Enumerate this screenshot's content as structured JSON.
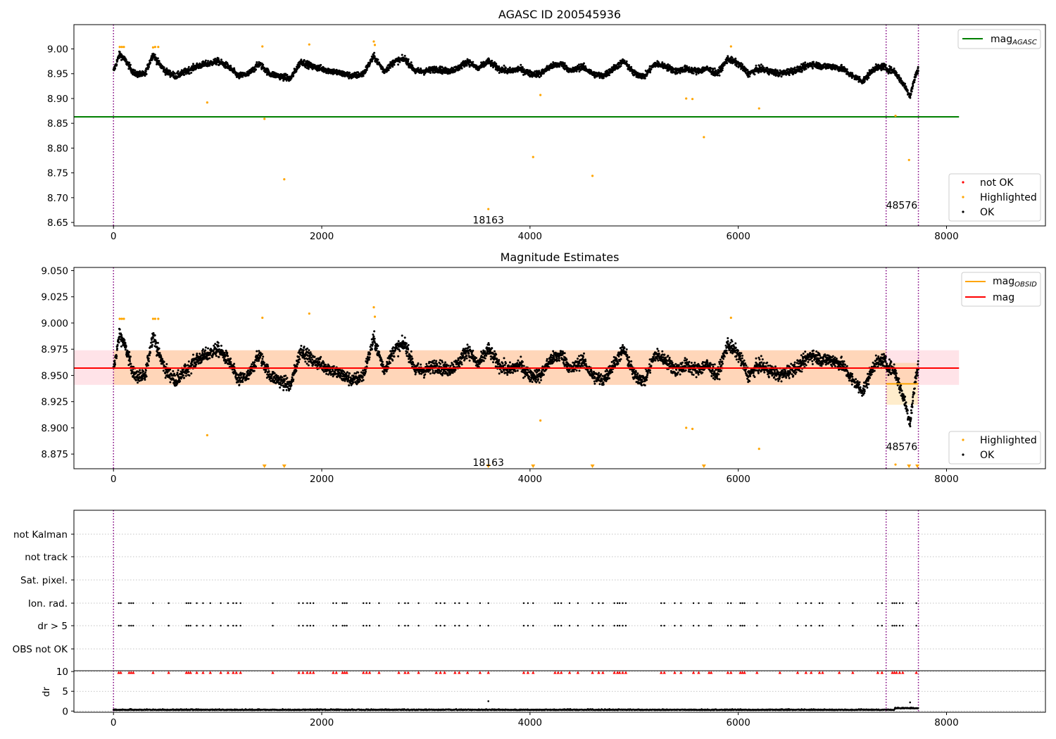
{
  "chart_data": [
    {
      "type": "scatter",
      "title": "AGASC ID 200545936",
      "xlabel": "",
      "ylabel": "",
      "xlim": [
        -380,
        8950
      ],
      "ylim": [
        8.643,
        9.049
      ],
      "x_ticks": [
        "0",
        "2000",
        "4000",
        "6000",
        "8000"
      ],
      "y_ticks": [
        "8.65",
        "8.70",
        "8.75",
        "8.80",
        "8.85",
        "8.90",
        "8.95",
        "9.00"
      ],
      "x_tick_values": [
        0,
        2000,
        4000,
        6000,
        8000
      ],
      "y_tick_values": [
        8.65,
        8.7,
        8.75,
        8.8,
        8.85,
        8.9,
        8.95,
        9.0
      ],
      "grid": false,
      "reference_line": {
        "label": "mag_AGASC",
        "y": 8.863,
        "x_range": [
          -380,
          8120
        ],
        "color": "#008000"
      },
      "vlines": [
        0,
        7420,
        7730
      ],
      "vline_color": "#800080",
      "annotations": [
        {
          "text": "18163",
          "x": 3600,
          "y": 8.655
        },
        {
          "text": "48576",
          "x": 7570,
          "y": 8.685
        }
      ],
      "legend_upper": {
        "placement": "top-right",
        "entries": [
          {
            "label": "mag",
            "sub": "AGASC",
            "kind": "line",
            "color": "#008000"
          }
        ]
      },
      "legend_lower": {
        "placement": "bottom-right",
        "entries": [
          {
            "label": "not OK",
            "kind": "dot",
            "color": "#ff0000"
          },
          {
            "label": "Highlighted",
            "kind": "dot",
            "color": "#ffa500"
          },
          {
            "label": "OK",
            "kind": "dot",
            "color": "#000000"
          }
        ]
      },
      "series": [
        {
          "name": "not OK",
          "color": "#ff0000",
          "x": [],
          "y": []
        },
        {
          "name": "Highlighted",
          "color": "#ffa500",
          "x": [
            60,
            80,
            100,
            380,
            400,
            430,
            900,
            1430,
            1450,
            1640,
            1880,
            2500,
            2510,
            3600,
            4030,
            4100,
            4600,
            5500,
            5560,
            5670,
            5930,
            6200,
            7510,
            7640
          ],
          "y": [
            9.004,
            9.004,
            9.004,
            9.003,
            9.004,
            9.004,
            8.892,
            9.005,
            8.859,
            8.737,
            9.009,
            9.015,
            9.008,
            8.677,
            8.782,
            8.907,
            8.744,
            8.9,
            8.899,
            8.822,
            9.005,
            8.88,
            8.865,
            8.776
          ]
        },
        {
          "name": "OK",
          "color": "#000000",
          "profile_x": [
            0,
            60,
            120,
            200,
            300,
            380,
            420,
            500,
            600,
            700,
            800,
            900,
            1000,
            1100,
            1200,
            1300,
            1400,
            1500,
            1600,
            1700,
            1800,
            1900,
            2000,
            2100,
            2200,
            2300,
            2400,
            2500,
            2600,
            2700,
            2800,
            2900,
            3000,
            3100,
            3200,
            3300,
            3400,
            3500,
            3600,
            3700,
            3800,
            3900,
            4000,
            4100,
            4200,
            4300,
            4400,
            4500,
            4600,
            4700,
            4800,
            4900,
            5000,
            5100,
            5200,
            5300,
            5400,
            5500,
            5600,
            5700,
            5800,
            5900,
            6000,
            6100,
            6200,
            6300,
            6400,
            6500,
            6600,
            6700,
            6800,
            6900,
            7000,
            7100,
            7200,
            7300,
            7400,
            7420,
            7500,
            7550,
            7600,
            7650,
            7700,
            7730
          ],
          "profile_y": [
            8.955,
            8.99,
            8.975,
            8.95,
            8.948,
            8.99,
            8.975,
            8.955,
            8.945,
            8.955,
            8.965,
            8.97,
            8.975,
            8.965,
            8.945,
            8.95,
            8.97,
            8.95,
            8.945,
            8.94,
            8.975,
            8.965,
            8.96,
            8.955,
            8.95,
            8.945,
            8.95,
            8.985,
            8.955,
            8.975,
            8.98,
            8.955,
            8.955,
            8.96,
            8.955,
            8.96,
            8.975,
            8.96,
            8.975,
            8.96,
            8.955,
            8.96,
            8.95,
            8.95,
            8.965,
            8.97,
            8.955,
            8.965,
            8.95,
            8.945,
            8.96,
            8.975,
            8.95,
            8.945,
            8.97,
            8.965,
            8.955,
            8.96,
            8.955,
            8.96,
            8.95,
            8.98,
            8.97,
            8.95,
            8.96,
            8.955,
            8.95,
            8.955,
            8.96,
            8.97,
            8.965,
            8.965,
            8.96,
            8.945,
            8.935,
            8.96,
            8.965,
            8.96,
            8.955,
            8.94,
            8.925,
            8.905,
            8.945,
            8.96
          ],
          "scatter": 0.011
        }
      ]
    },
    {
      "type": "scatter",
      "title": "Magnitude Estimates",
      "xlabel": "",
      "ylabel": "",
      "xlim": [
        -380,
        8950
      ],
      "ylim": [
        8.861,
        9.053
      ],
      "x_ticks": [
        "0",
        "2000",
        "4000",
        "6000",
        "8000"
      ],
      "y_ticks": [
        "8.875",
        "8.900",
        "8.925",
        "8.950",
        "8.975",
        "9.000",
        "9.025",
        "9.050"
      ],
      "x_tick_values": [
        0,
        2000,
        4000,
        6000,
        8000
      ],
      "y_tick_values": [
        8.875,
        8.9,
        8.925,
        8.95,
        8.975,
        9.0,
        9.025,
        9.05
      ],
      "grid": false,
      "mag_line": {
        "label": "mag",
        "y": 8.957,
        "x_range": [
          -380,
          8120
        ],
        "color": "#ff0000"
      },
      "mag_band": {
        "y_low": 8.941,
        "y_high": 8.974,
        "x_range": [
          -380,
          8120
        ]
      },
      "obsid_segments": [
        {
          "x_range": [
            0,
            7420
          ],
          "y": 8.957,
          "band": [
            8.941,
            8.974
          ]
        },
        {
          "x_range": [
            7420,
            7730
          ],
          "y": 8.942,
          "band": [
            8.922,
            8.962
          ]
        }
      ],
      "vlines": [
        0,
        7420,
        7730
      ],
      "vline_color": "#800080",
      "annotations": [
        {
          "text": "18163",
          "x": 3600,
          "y": 8.867
        },
        {
          "text": "48576",
          "x": 7570,
          "y": 8.882
        }
      ],
      "legend_upper": {
        "placement": "top-right",
        "entries": [
          {
            "label": "mag",
            "sub": "OBSID",
            "kind": "line",
            "color": "#ffa500"
          },
          {
            "label": "mag",
            "kind": "line",
            "color": "#ff0000"
          }
        ]
      },
      "legend_lower": {
        "placement": "bottom-right",
        "entries": [
          {
            "label": "Highlighted",
            "kind": "dot",
            "color": "#ffa500"
          },
          {
            "label": "OK",
            "kind": "dot",
            "color": "#000000"
          }
        ]
      },
      "offscale_markers": {
        "x": [
          1450,
          1640,
          3600,
          4030,
          4600,
          5670,
          7640,
          7720
        ],
        "y": 8.861,
        "color": "#ffa500"
      },
      "series": [
        {
          "name": "Highlighted",
          "color": "#ffa500",
          "x": [
            60,
            80,
            100,
            380,
            400,
            430,
            900,
            1430,
            1880,
            2500,
            2510,
            4100,
            5500,
            5560,
            5930,
            6200,
            7510
          ],
          "y": [
            9.004,
            9.004,
            9.004,
            9.004,
            9.004,
            9.004,
            8.893,
            9.005,
            9.009,
            9.015,
            9.006,
            8.907,
            8.9,
            8.899,
            9.005,
            8.88,
            8.865
          ]
        },
        {
          "name": "OK",
          "color": "#000000",
          "profile_ref": "chart_data.0.series.2",
          "scatter": 0.011
        }
      ]
    },
    {
      "type": "scatter",
      "title": "",
      "xlabel": "",
      "ylabel": "",
      "xlim": [
        -380,
        8950
      ],
      "flag_labels": [
        "not Kalman",
        "not track",
        "Sat. pixel.",
        "Ion. rad.",
        "dr > 5",
        "OBS not OK"
      ],
      "flag_points": {
        "Ion. rad.": [
          50,
          70,
          150,
          170,
          190,
          380,
          530,
          700,
          720,
          740,
          800,
          860,
          930,
          1030,
          1100,
          1150,
          1180,
          1220,
          1530,
          1780,
          1820,
          1860,
          1890,
          1920,
          2110,
          2140,
          2200,
          2220,
          2240,
          2400,
          2430,
          2460,
          2550,
          2740,
          2800,
          2830,
          2930,
          3100,
          3140,
          3180,
          3280,
          3320,
          3400,
          3520,
          3600,
          3940,
          3980,
          4030,
          4240,
          4270,
          4300,
          4380,
          4460,
          4600,
          4660,
          4700,
          4810,
          4840,
          4860,
          4890,
          4920,
          5260,
          5290,
          5390,
          5450,
          5570,
          5620,
          5720,
          5740,
          5900,
          5930,
          6020,
          6040,
          6060,
          6180,
          6400,
          6570,
          6650,
          6700,
          6780,
          6810,
          6970,
          7100,
          7340,
          7380,
          7480,
          7500,
          7520,
          7550,
          7580,
          7710
        ],
        "dr > 5": [
          50,
          70,
          150,
          170,
          190,
          380,
          530,
          700,
          720,
          740,
          800,
          860,
          930,
          1030,
          1100,
          1150,
          1180,
          1220,
          1530,
          1780,
          1820,
          1860,
          1890,
          1920,
          2110,
          2140,
          2200,
          2220,
          2240,
          2400,
          2430,
          2460,
          2550,
          2740,
          2800,
          2830,
          2930,
          3100,
          3140,
          3180,
          3280,
          3320,
          3400,
          3520,
          3600,
          3940,
          3980,
          4030,
          4240,
          4270,
          4300,
          4380,
          4460,
          4600,
          4660,
          4700,
          4810,
          4840,
          4860,
          4890,
          4920,
          5260,
          5290,
          5390,
          5450,
          5570,
          5620,
          5720,
          5740,
          5900,
          5930,
          6020,
          6040,
          6060,
          6180,
          6400,
          6570,
          6650,
          6700,
          6780,
          6810,
          6970,
          7100,
          7340,
          7380,
          7480,
          7500,
          7520,
          7550,
          7580,
          7710
        ]
      },
      "vlines": [
        0,
        7420,
        7730
      ],
      "vline_color": "#800080"
    },
    {
      "type": "scatter",
      "title": "",
      "xlabel": "",
      "ylabel": "dr",
      "xlim": [
        -380,
        8950
      ],
      "ylim": [
        -0.3,
        10.2
      ],
      "x_ticks": [
        "0",
        "2000",
        "4000",
        "6000",
        "8000"
      ],
      "y_ticks": [
        "0",
        "5",
        "10"
      ],
      "x_tick_values": [
        0,
        2000,
        4000,
        6000,
        8000
      ],
      "y_tick_values": [
        0,
        5,
        10
      ],
      "clipped_marker_y": 9.75,
      "clipped_marker_color": "#ff0000",
      "dr_baseline": 0.25,
      "dr_outliers": [
        {
          "x": 3600,
          "y": 2.5
        },
        {
          "x": 7650,
          "y": 2.2
        }
      ],
      "vlines": [
        0,
        7420,
        7730
      ],
      "vline_color": "#800080"
    }
  ]
}
